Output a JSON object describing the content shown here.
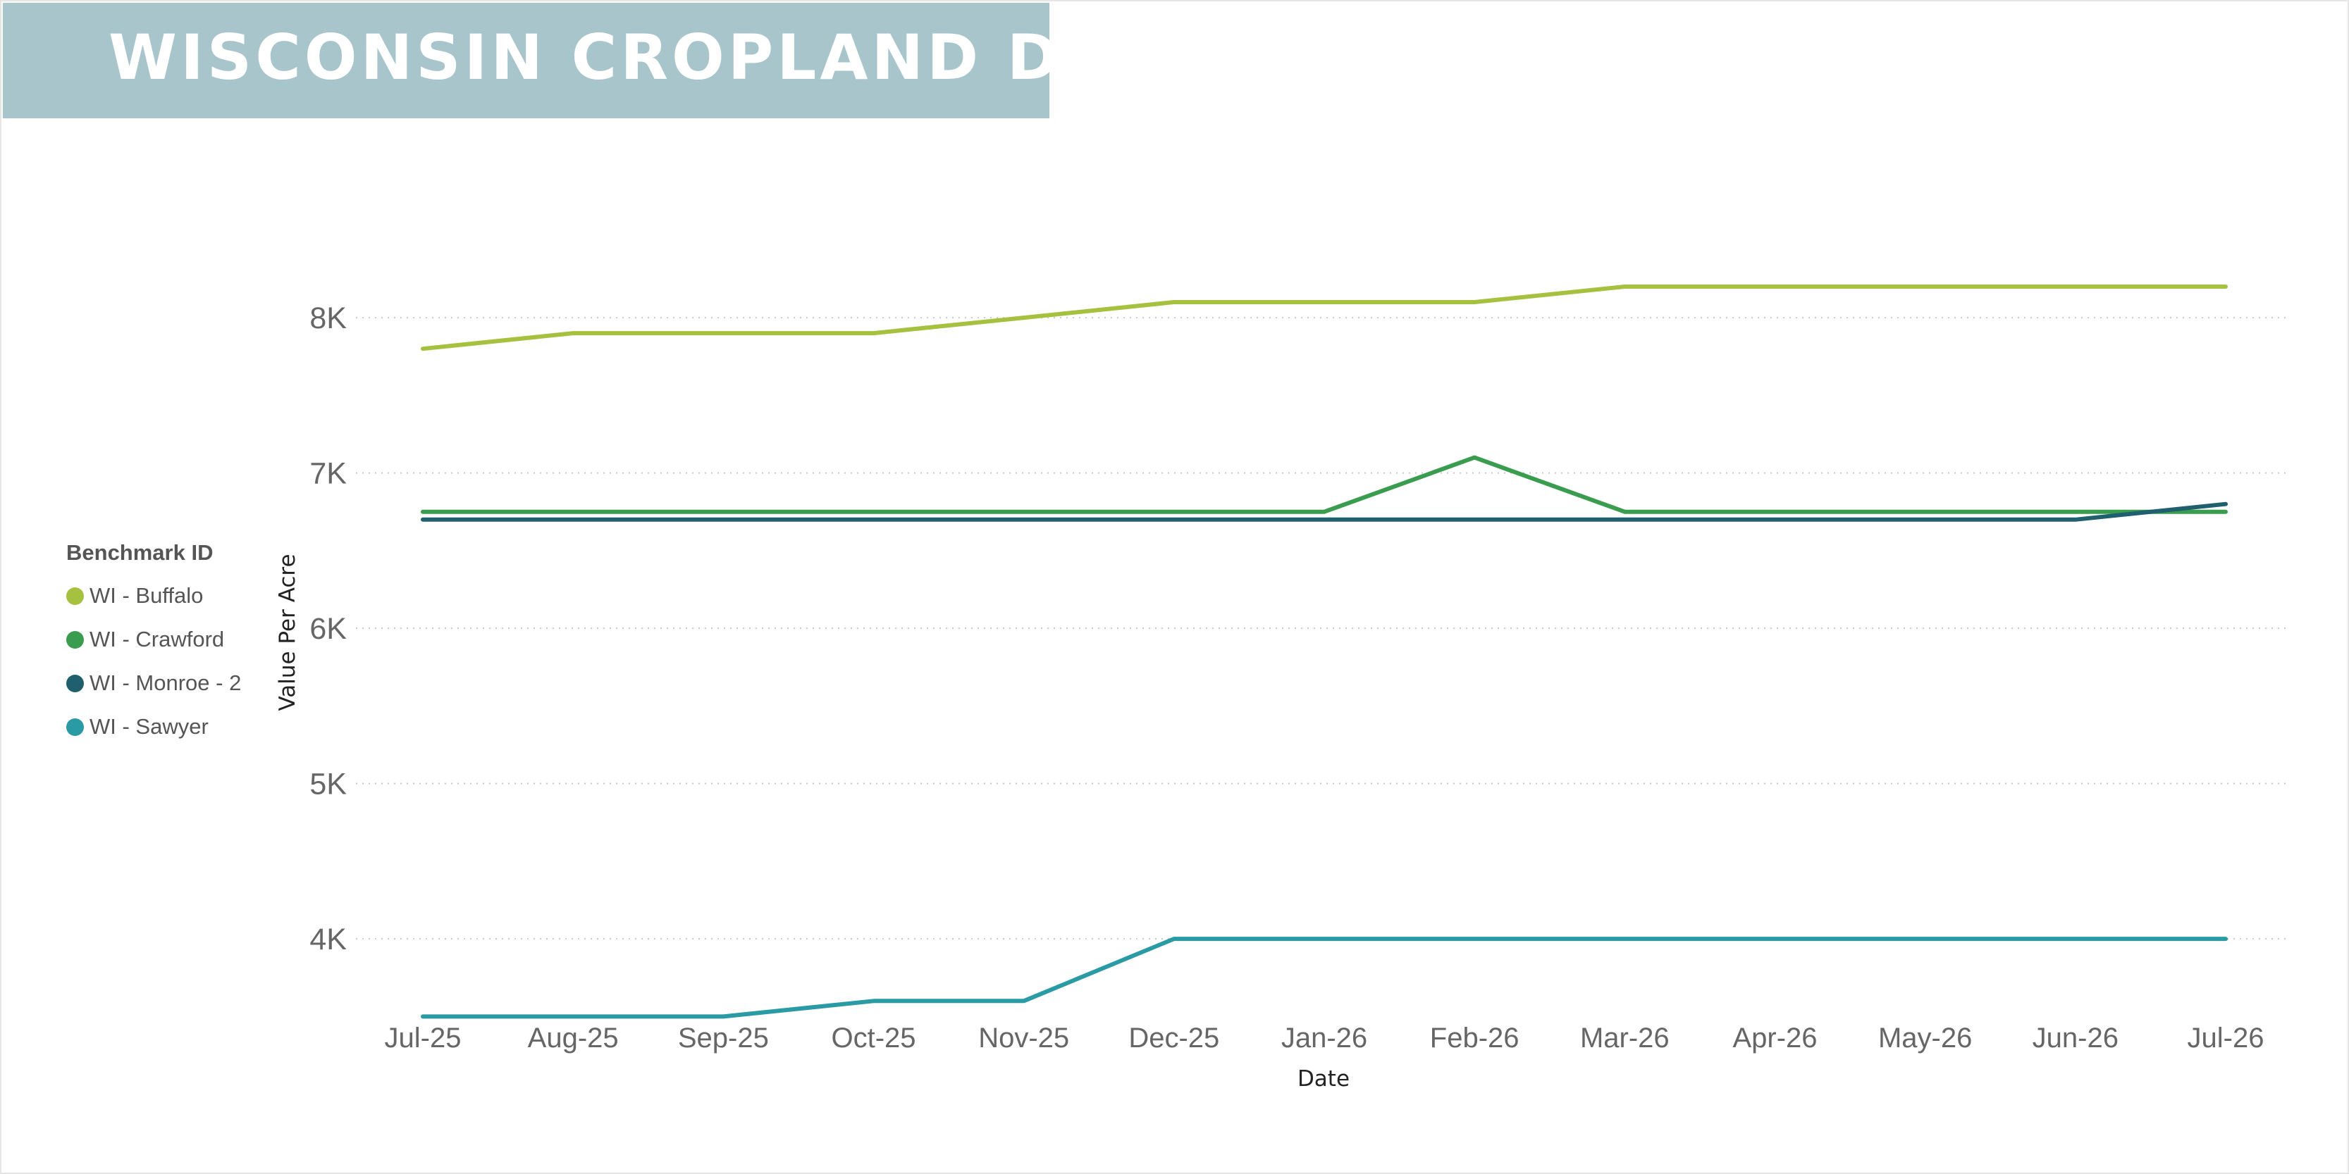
{
  "title": "WISCONSIN CROPLAND D",
  "legend": {
    "title": "Benchmark ID",
    "items": [
      {
        "label": "WI - Buffalo",
        "color": "#a6c13f"
      },
      {
        "label": "WI - Crawford",
        "color": "#3a9c4e"
      },
      {
        "label": "WI - Monroe - 2",
        "color": "#1f5f6e"
      },
      {
        "label": "WI - Sawyer",
        "color": "#2a9ba4"
      }
    ]
  },
  "chart_data": {
    "type": "line",
    "title": "",
    "xlabel": "Date",
    "ylabel": "Value Per Acre",
    "categories": [
      "Jul-25",
      "Aug-25",
      "Sep-25",
      "Oct-25",
      "Nov-25",
      "Dec-25",
      "Jan-26",
      "Feb-26",
      "Mar-26",
      "Apr-26",
      "May-26",
      "Jun-26",
      "Jul-26"
    ],
    "y_ticks": [
      4000,
      5000,
      6000,
      7000,
      8000
    ],
    "y_tick_labels": [
      "4K",
      "5K",
      "6K",
      "7K",
      "8K"
    ],
    "ylim": [
      3470,
      8980
    ],
    "grid": true,
    "legend_position": "left",
    "series": [
      {
        "name": "WI - Buffalo",
        "color": "#a6c13f",
        "values": [
          7800,
          7900,
          7900,
          7900,
          8000,
          8100,
          8100,
          8100,
          8200,
          8200,
          8200,
          8200,
          8200
        ]
      },
      {
        "name": "WI - Crawford",
        "color": "#3a9c4e",
        "values": [
          6750,
          6750,
          6750,
          6750,
          6750,
          6750,
          6750,
          7100,
          6750,
          6750,
          6750,
          6750,
          6750
        ]
      },
      {
        "name": "WI - Monroe - 2",
        "color": "#1f5f6e",
        "values": [
          6700,
          6700,
          6700,
          6700,
          6700,
          6700,
          6700,
          6700,
          6700,
          6700,
          6700,
          6700,
          6800
        ]
      },
      {
        "name": "WI - Sawyer",
        "color": "#2a9ba4",
        "values": [
          3500,
          3500,
          3500,
          3600,
          3600,
          4000,
          4000,
          4000,
          4000,
          4000,
          4000,
          4000,
          4000
        ]
      }
    ]
  }
}
